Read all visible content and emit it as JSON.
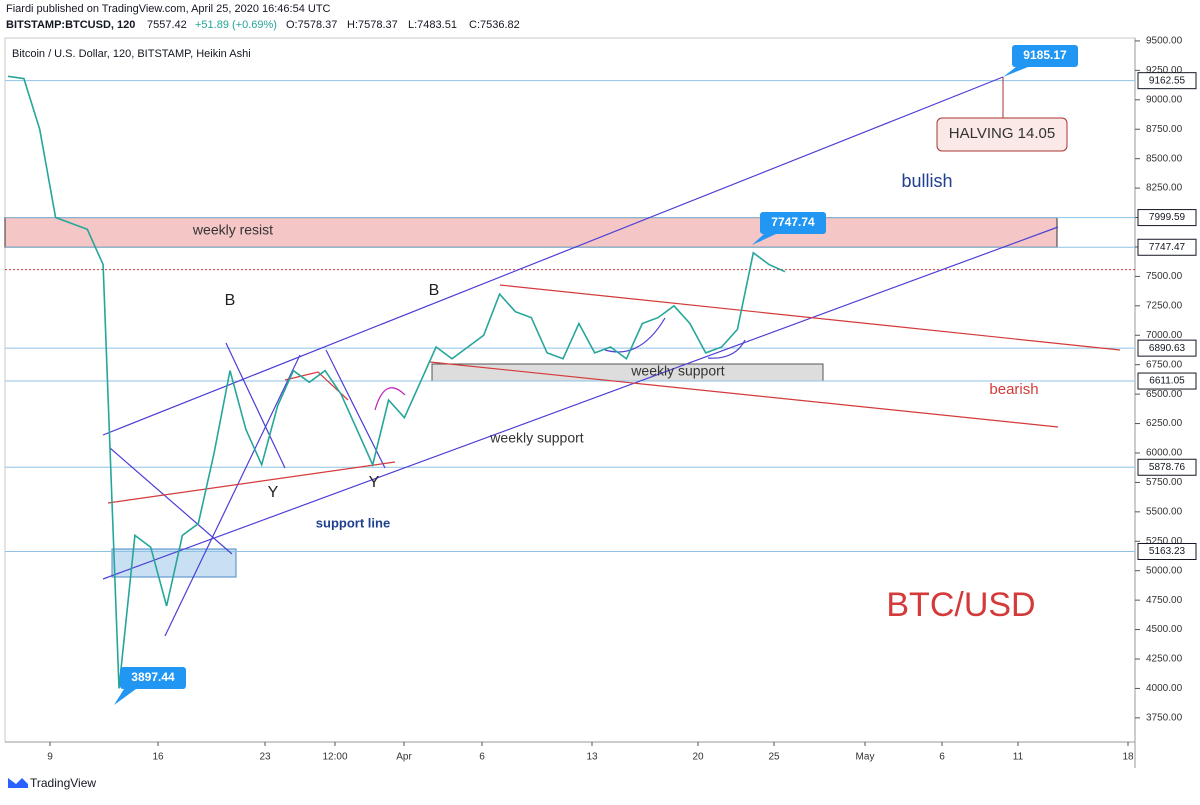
{
  "header": {
    "publisher": "Fiardi published on TradingView.com, April 25, 2020 16:46:54 UTC",
    "symbol": "BITSTAMP:BTCUSD, 120",
    "last": "7557.42",
    "change": "+51.89 (+0.69%)",
    "open": "O:7578.37",
    "high": "H:7578.37",
    "low": "L:7483.51",
    "close": "C:7536.82"
  },
  "chart_data": {
    "type": "line",
    "legend_title": "Bitcoin / U.S. Dollar, 120, BITSTAMP, Heikin Ashi",
    "series": [
      {
        "color": "#26a69a",
        "values": [
          9200,
          9180,
          8750,
          8000,
          7950,
          7900,
          7600,
          4000,
          5300,
          5200,
          4700,
          5300,
          5400,
          6000,
          6700,
          6200,
          5900,
          6400,
          6700,
          6600,
          6700,
          6500,
          6200,
          5900,
          6450,
          6300,
          6600,
          6900,
          6800,
          6900,
          7000,
          7350,
          7200,
          7150,
          6850,
          6800,
          7100,
          6850,
          6900,
          6800,
          7100,
          7150,
          7250,
          7100,
          6850,
          6900,
          7050,
          7700,
          7600,
          7540
        ]
      }
    ],
    "ylim": [
      3545,
      9525
    ],
    "yticks": [
      {
        "value": 9500,
        "label": "9500.00"
      },
      {
        "value": 9250,
        "label": "9250.00"
      },
      {
        "value": 9000,
        "label": "9000.00"
      },
      {
        "value": 8750,
        "label": "8750.00"
      },
      {
        "value": 8500,
        "label": "8500.00"
      },
      {
        "value": 8250,
        "label": "8250.00"
      },
      {
        "value": 8000,
        "label": "8000.00"
      },
      {
        "value": 7750,
        "label": "7750.00"
      },
      {
        "value": 7500,
        "label": "7500.00"
      },
      {
        "value": 7250,
        "label": "7250.00"
      },
      {
        "value": 7000,
        "label": "7000.00"
      },
      {
        "value": 6750,
        "label": "6750.00"
      },
      {
        "value": 6500,
        "label": "6500.00"
      },
      {
        "value": 6250,
        "label": "6250.00"
      },
      {
        "value": 6000,
        "label": "6000.00"
      },
      {
        "value": 5750,
        "label": "5750.00"
      },
      {
        "value": 5500,
        "label": "5500.00"
      },
      {
        "value": 5250,
        "label": "5250.00"
      },
      {
        "value": 5000,
        "label": "5000.00"
      },
      {
        "value": 4750,
        "label": "4750.00"
      },
      {
        "value": 4500,
        "label": "4500.00"
      },
      {
        "value": 4250,
        "label": "4250.00"
      },
      {
        "value": 4000,
        "label": "4000.00"
      },
      {
        "value": 3750,
        "label": "3750.00"
      }
    ],
    "x_labels": [
      "9",
      "16",
      "23",
      "12:00",
      "Apr",
      "6",
      "13",
      "20",
      "25",
      "May",
      "6",
      "11",
      "18"
    ],
    "levels": [
      9162.55,
      7999.59,
      7747.47,
      6890.63,
      6611.05,
      5878.76,
      5163.23
    ],
    "current_price": 7557.42,
    "callouts": [
      9185.17,
      7747.74,
      3897.44
    ],
    "annotations": [
      "weekly resist",
      "B",
      "B",
      "Y",
      "Y",
      "support line",
      "weekly support",
      "weekly support",
      "bullish",
      "bearish",
      "HALVING 14.05",
      "BTC/USD"
    ]
  },
  "footer": {
    "brand": "TradingView"
  }
}
